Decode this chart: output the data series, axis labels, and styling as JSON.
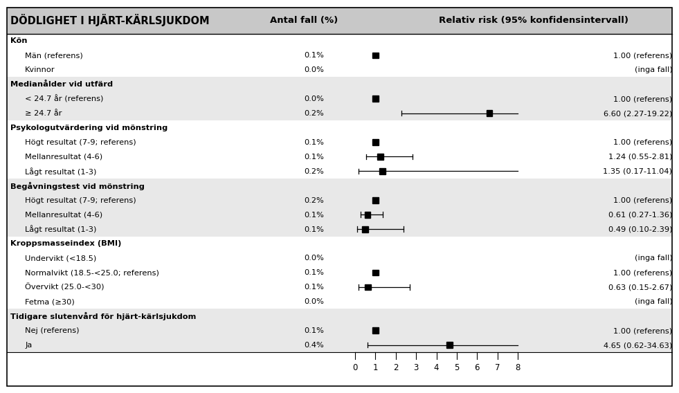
{
  "title": "DÖDLIGHET I HJÄRT-KÄRLSJUKDOM",
  "col1_header": "Antal fall (%)",
  "col2_header": "Relativ risk (95% konfidensintervall)",
  "header_bg": "#c8c8c8",
  "shaded_color": "#e8e8e8",
  "white_color": "#ffffff",
  "xmin": 0,
  "xmax": 8,
  "xticks": [
    0,
    1,
    2,
    3,
    4,
    5,
    6,
    7,
    8
  ],
  "rows": [
    {
      "label": "Kön",
      "indent": 0,
      "bold": true,
      "pct": null,
      "point": null,
      "ci_lo": null,
      "ci_hi": null,
      "rr_text": null,
      "shaded": false
    },
    {
      "label": "Män (referens)",
      "indent": 1,
      "bold": false,
      "pct": "0.1%",
      "point": 1.0,
      "ci_lo": null,
      "ci_hi": null,
      "rr_text": "1.00 (referens)",
      "shaded": false
    },
    {
      "label": "Kvinnor",
      "indent": 1,
      "bold": false,
      "pct": "0.0%",
      "point": null,
      "ci_lo": null,
      "ci_hi": null,
      "rr_text": "(inga fall)",
      "shaded": false
    },
    {
      "label": "Medianålder vid utfärd",
      "indent": 0,
      "bold": true,
      "pct": null,
      "point": null,
      "ci_lo": null,
      "ci_hi": null,
      "rr_text": null,
      "shaded": true
    },
    {
      "label": "< 24.7 år (referens)",
      "indent": 1,
      "bold": false,
      "pct": "0.0%",
      "point": 1.0,
      "ci_lo": null,
      "ci_hi": null,
      "rr_text": "1.00 (referens)",
      "shaded": true
    },
    {
      "label": "≥ 24.7 år",
      "indent": 1,
      "bold": false,
      "pct": "0.2%",
      "point": 6.6,
      "ci_lo": 2.27,
      "ci_hi": 8.0,
      "rr_text": "6.60 (2.27-19.22)",
      "shaded": true
    },
    {
      "label": "Psykologutvärdering vid mönstring",
      "indent": 0,
      "bold": true,
      "pct": null,
      "point": null,
      "ci_lo": null,
      "ci_hi": null,
      "rr_text": null,
      "shaded": false
    },
    {
      "label": "Högt resultat (7-9; referens)",
      "indent": 1,
      "bold": false,
      "pct": "0.1%",
      "point": 1.0,
      "ci_lo": null,
      "ci_hi": null,
      "rr_text": "1.00 (referens)",
      "shaded": false
    },
    {
      "label": "Mellanresultat (4-6)",
      "indent": 1,
      "bold": false,
      "pct": "0.1%",
      "point": 1.24,
      "ci_lo": 0.55,
      "ci_hi": 2.81,
      "rr_text": "1.24 (0.55-2.81)",
      "shaded": false
    },
    {
      "label": "Lågt resultat (1-3)",
      "indent": 1,
      "bold": false,
      "pct": "0.2%",
      "point": 1.35,
      "ci_lo": 0.17,
      "ci_hi": 8.0,
      "rr_text": "1.35 (0.17-11.04)",
      "shaded": false
    },
    {
      "label": "Begåvningstest vid mönstring",
      "indent": 0,
      "bold": true,
      "pct": null,
      "point": null,
      "ci_lo": null,
      "ci_hi": null,
      "rr_text": null,
      "shaded": true
    },
    {
      "label": "Högt resultat (7-9; referens)",
      "indent": 1,
      "bold": false,
      "pct": "0.2%",
      "point": 1.0,
      "ci_lo": null,
      "ci_hi": null,
      "rr_text": "1.00 (referens)",
      "shaded": true
    },
    {
      "label": "Mellanresultat (4-6)",
      "indent": 1,
      "bold": false,
      "pct": "0.1%",
      "point": 0.61,
      "ci_lo": 0.27,
      "ci_hi": 1.36,
      "rr_text": "0.61 (0.27-1.36)",
      "shaded": true
    },
    {
      "label": "Lågt resultat (1-3)",
      "indent": 1,
      "bold": false,
      "pct": "0.1%",
      "point": 0.49,
      "ci_lo": 0.1,
      "ci_hi": 2.39,
      "rr_text": "0.49 (0.10-2.39)",
      "shaded": true
    },
    {
      "label": "Kroppsmasseindex (BMI)",
      "indent": 0,
      "bold": true,
      "pct": null,
      "point": null,
      "ci_lo": null,
      "ci_hi": null,
      "rr_text": null,
      "shaded": false
    },
    {
      "label": "Undervikt (<18.5)",
      "indent": 1,
      "bold": false,
      "pct": "0.0%",
      "point": null,
      "ci_lo": null,
      "ci_hi": null,
      "rr_text": "(inga fall)",
      "shaded": false
    },
    {
      "label": "Normalvikt (18.5-<25.0; referens)",
      "indent": 1,
      "bold": false,
      "pct": "0.1%",
      "point": 1.0,
      "ci_lo": null,
      "ci_hi": null,
      "rr_text": "1.00 (referens)",
      "shaded": false
    },
    {
      "label": "Övervikt (25.0-<30)",
      "indent": 1,
      "bold": false,
      "pct": "0.1%",
      "point": 0.63,
      "ci_lo": 0.15,
      "ci_hi": 2.67,
      "rr_text": "0.63 (0.15-2.67)",
      "shaded": false
    },
    {
      "label": "Fetma (≥30)",
      "indent": 1,
      "bold": false,
      "pct": "0.0%",
      "point": null,
      "ci_lo": null,
      "ci_hi": null,
      "rr_text": "(inga fall)",
      "shaded": false
    },
    {
      "label": "Tidigare slutenvård för hjärt-kärlsjukdom",
      "indent": 0,
      "bold": true,
      "pct": null,
      "point": null,
      "ci_lo": null,
      "ci_hi": null,
      "rr_text": null,
      "shaded": true
    },
    {
      "label": "Nej (referens)",
      "indent": 1,
      "bold": false,
      "pct": "0.1%",
      "point": 1.0,
      "ci_lo": null,
      "ci_hi": null,
      "rr_text": "1.00 (referens)",
      "shaded": true
    },
    {
      "label": "Ja",
      "indent": 1,
      "bold": false,
      "pct": "0.4%",
      "point": 4.65,
      "ci_lo": 0.62,
      "ci_hi": 8.0,
      "rr_text": "4.65 (0.62-34.63)",
      "shaded": true
    }
  ]
}
